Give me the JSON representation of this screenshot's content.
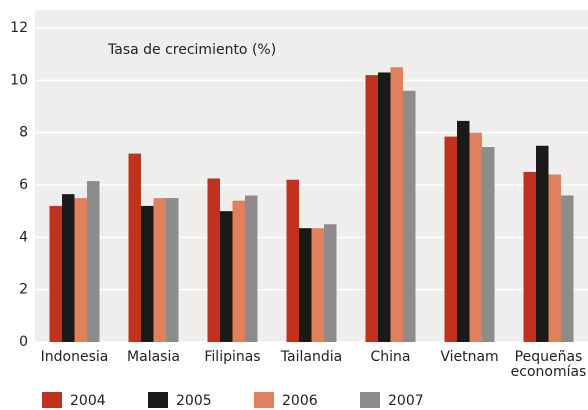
{
  "chart_data": {
    "type": "bar",
    "annotation": "Tasa de crecimiento (%)",
    "categories": [
      "Indonesia",
      "Malasia",
      "Filipinas",
      "Tailandia",
      "China",
      "Vietnam",
      "Pequeñas economías"
    ],
    "series": [
      {
        "name": "2004",
        "color": "#c0311f",
        "values": [
          5.2,
          7.2,
          6.25,
          6.2,
          10.2,
          7.85,
          6.5
        ]
      },
      {
        "name": "2005",
        "color": "#1a1a1a",
        "values": [
          5.65,
          5.2,
          5.0,
          4.35,
          10.3,
          8.45,
          7.5
        ]
      },
      {
        "name": "2006",
        "color": "#e0805f",
        "values": [
          5.5,
          5.5,
          5.4,
          4.35,
          10.5,
          8.0,
          6.4
        ]
      },
      {
        "name": "2007",
        "color": "#8c8c8c",
        "values": [
          6.15,
          5.5,
          5.6,
          4.5,
          9.6,
          7.45,
          5.6
        ]
      }
    ],
    "ylim": [
      0,
      12
    ],
    "yticks": [
      0,
      2,
      4,
      6,
      8,
      10,
      12
    ],
    "grid": true,
    "legend": "bottom"
  }
}
